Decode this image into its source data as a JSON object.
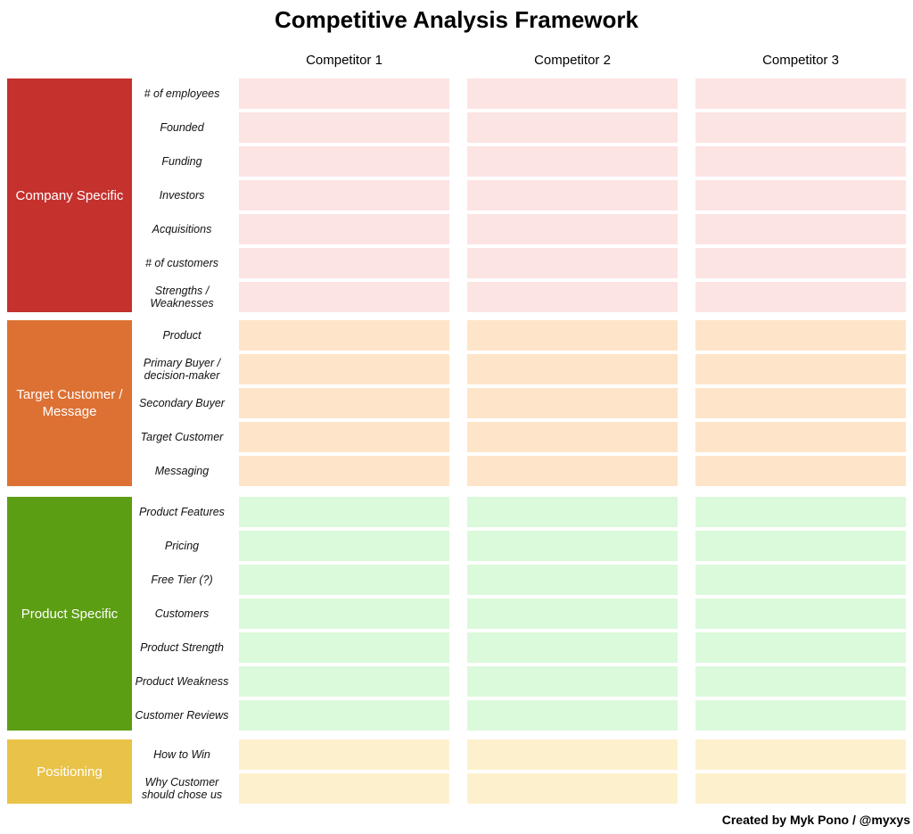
{
  "title": "Competitive Analysis Framework",
  "credit": "Created by Myk Pono / @myxys",
  "columns": [
    {
      "label": "Competitor 1"
    },
    {
      "label": "Competitor 2"
    },
    {
      "label": "Competitor 3"
    }
  ],
  "sections": [
    {
      "label": "Company Specific",
      "block_color": "#C5312D",
      "cell_color": "#FCE4E3",
      "rows": [
        "# of employees",
        "Founded",
        "Funding",
        "Investors",
        "Acquisitions",
        "# of customers",
        "Strengths /\nWeaknesses"
      ]
    },
    {
      "label": "Target Customer /\nMessage",
      "block_color": "#DD7134",
      "cell_color": "#FEE5C9",
      "rows": [
        "Product",
        "Primary Buyer /\ndecision-maker",
        "Secondary Buyer",
        "Target Customer",
        "Messaging"
      ]
    },
    {
      "label": "Product Specific",
      "block_color": "#5C9E13",
      "cell_color": "#DBF9DB",
      "rows": [
        "Product Features",
        "Pricing",
        "Free Tier (?)",
        "Customers",
        "Product Strength",
        "Product Weakness",
        "Customer Reviews"
      ]
    },
    {
      "label": "Positioning",
      "block_color": "#E9C347",
      "cell_color": "#FDF1CD",
      "rows": [
        "How to Win",
        "Why Customer\nshould chose us"
      ]
    }
  ]
}
